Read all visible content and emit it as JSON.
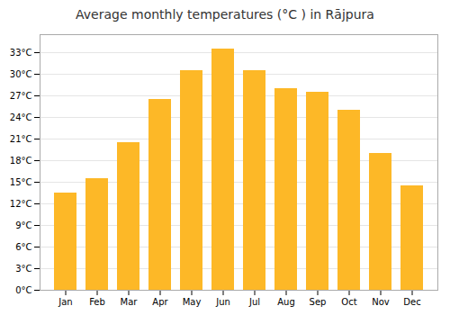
{
  "chart_data": {
    "type": "bar",
    "title": "Average monthly temperatures (°C ) in Rājpura",
    "categories": [
      "Jan",
      "Feb",
      "Mar",
      "Apr",
      "May",
      "Jun",
      "Jul",
      "Aug",
      "Sep",
      "Oct",
      "Nov",
      "Dec"
    ],
    "values": [
      13.5,
      15.5,
      20.5,
      26.5,
      30.5,
      33.5,
      30.5,
      28.0,
      27.5,
      25.0,
      19.0,
      14.5
    ],
    "color": "#FDB827",
    "ylim": [
      0,
      35.5
    ],
    "yticks": [
      {
        "value": 0,
        "label": "0°C"
      },
      {
        "value": 3,
        "label": "3°C"
      },
      {
        "value": 6,
        "label": "6°C"
      },
      {
        "value": 9,
        "label": "9°C"
      },
      {
        "value": 12,
        "label": "12°C"
      },
      {
        "value": 15,
        "label": "15°C"
      },
      {
        "value": 18,
        "label": "18°C"
      },
      {
        "value": 21,
        "label": "21°C"
      },
      {
        "value": 24,
        "label": "24°C"
      },
      {
        "value": 27,
        "label": "27°C"
      },
      {
        "value": 30,
        "label": "30°C"
      },
      {
        "value": 33,
        "label": "33°C"
      }
    ],
    "grid": true
  }
}
